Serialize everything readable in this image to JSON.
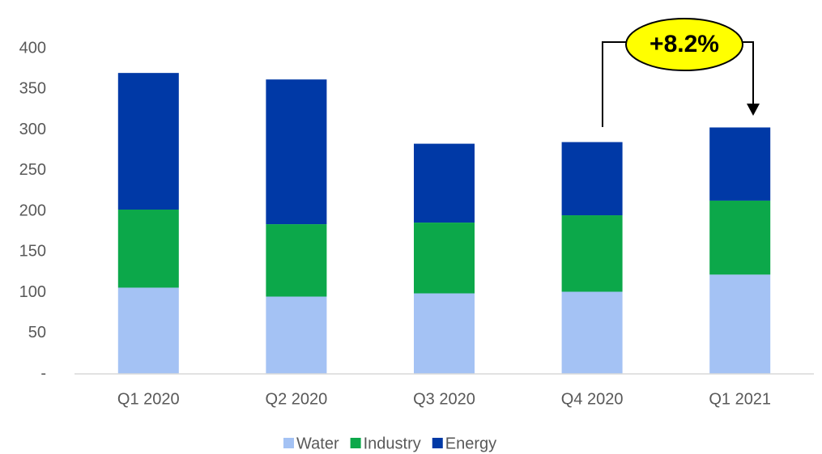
{
  "chart_data": {
    "type": "stacked_bar",
    "categories": [
      "Q1 2020",
      "Q2 2020",
      "Q3 2020",
      "Q4 2020",
      "Q1 2021"
    ],
    "series": [
      {
        "name": "Water",
        "color": "#a4c2f4",
        "values": [
          106,
          95,
          99,
          101,
          122
        ]
      },
      {
        "name": "Industry",
        "color": "#0ca84a",
        "values": [
          96,
          89,
          87,
          94,
          91
        ]
      },
      {
        "name": "Energy",
        "color": "#0039a6",
        "values": [
          168,
          178,
          97,
          90,
          90
        ]
      }
    ],
    "ylim": [
      0,
      400
    ],
    "yticks": [
      {
        "value": 0,
        "label": "-"
      },
      50,
      100,
      150,
      200,
      250,
      300,
      350,
      400
    ],
    "annotation": "+8.2%",
    "legend": "bottom"
  }
}
